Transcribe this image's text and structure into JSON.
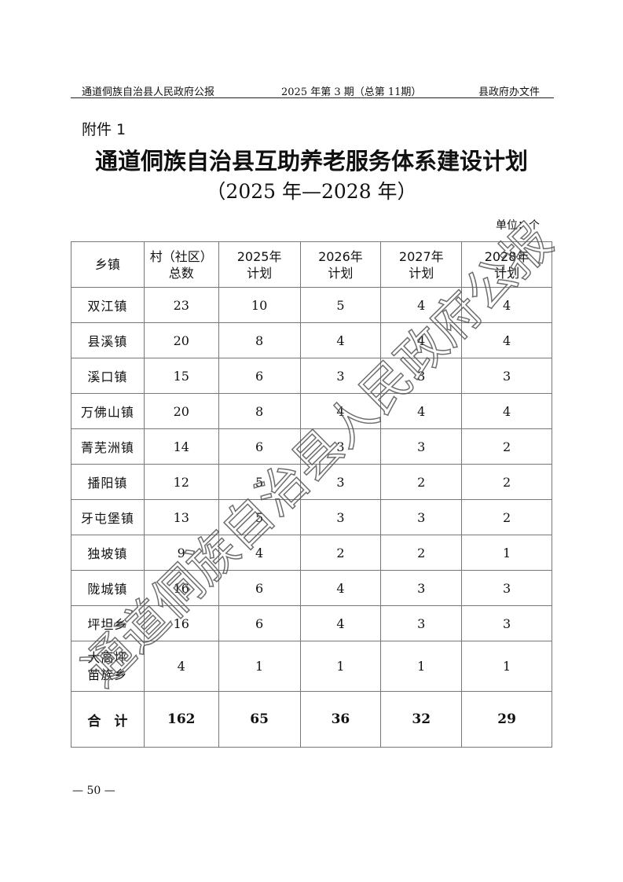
{
  "header": {
    "left": "通道侗族自治县人民政府公报",
    "center": "2025 年第 3 期（总第 11期）",
    "right": "县政府办文件"
  },
  "attachment": "附件 1",
  "title": "通道侗族自治县互助养老服务体系建设计划",
  "subtitle": "（2025 年—2028 年）",
  "unit": "单位：个",
  "table": {
    "headers": [
      "乡镇",
      "村（社区）\n总数",
      "2025年\n计划",
      "2026年\n计划",
      "2027年\n计划",
      "2028年\n计划"
    ],
    "rows": [
      [
        "双江镇",
        "23",
        "10",
        "5",
        "4",
        "4"
      ],
      [
        "县溪镇",
        "20",
        "8",
        "4",
        "4",
        "4"
      ],
      [
        "溪口镇",
        "15",
        "6",
        "3",
        "3",
        "3"
      ],
      [
        "万佛山镇",
        "20",
        "8",
        "4",
        "4",
        "4"
      ],
      [
        "菁芜洲镇",
        "14",
        "6",
        "3",
        "3",
        "2"
      ],
      [
        "播阳镇",
        "12",
        "5",
        "3",
        "2",
        "2"
      ],
      [
        "牙屯堡镇",
        "13",
        "5",
        "3",
        "3",
        "2"
      ],
      [
        "独坡镇",
        "9",
        "4",
        "2",
        "2",
        "1"
      ],
      [
        "陇城镇",
        "16",
        "6",
        "4",
        "3",
        "3"
      ],
      [
        "坪坦乡",
        "16",
        "6",
        "4",
        "3",
        "3"
      ],
      [
        "大高坪\n苗族乡",
        "4",
        "1",
        "1",
        "1",
        "1"
      ]
    ],
    "total": [
      "合　计",
      "162",
      "65",
      "36",
      "32",
      "29"
    ]
  },
  "page_number": "— 50 —",
  "watermark": "通道侗族自治县人民政府公报"
}
